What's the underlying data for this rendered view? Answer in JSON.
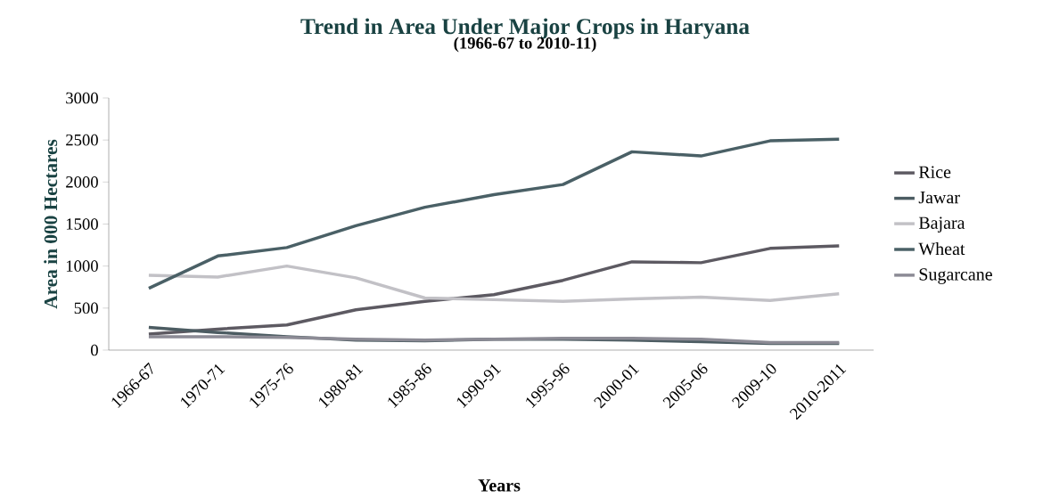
{
  "chart_data": {
    "type": "line",
    "title": "Trend in Area Under Major Crops in Haryana",
    "subtitle": "(1966-67 to 2010-11)",
    "xlabel": "Years",
    "ylabel": "Area in 000 Hectares",
    "categories": [
      "1966-67",
      "1970-71",
      "1975-76",
      "1980-81",
      "1985-86",
      "1990-91",
      "1995-96",
      "2000-01",
      "2005-06",
      "2009-10",
      "2010-2011"
    ],
    "series": [
      {
        "name": "Rice",
        "color": "#5d5a62",
        "values": [
          190,
          250,
          300,
          480,
          580,
          660,
          830,
          1050,
          1040,
          1210,
          1240
        ]
      },
      {
        "name": "Jawar",
        "color": "#4c5c62",
        "values": [
          270,
          210,
          160,
          120,
          110,
          130,
          130,
          120,
          100,
          80,
          80
        ]
      },
      {
        "name": "Bajara",
        "color": "#c2c1c6",
        "values": [
          890,
          870,
          1000,
          860,
          620,
          600,
          580,
          610,
          630,
          590,
          670
        ]
      },
      {
        "name": "Wheat",
        "color": "#4a6066",
        "values": [
          735,
          1120,
          1220,
          1480,
          1700,
          1850,
          1970,
          2360,
          2310,
          2490,
          2510
        ]
      },
      {
        "name": "Sugarcane",
        "color": "#8c8b95",
        "values": [
          160,
          160,
          150,
          130,
          120,
          130,
          140,
          140,
          130,
          90,
          90
        ]
      }
    ],
    "ylim": [
      0,
      3000
    ],
    "yticks": [
      0,
      500,
      1000,
      1500,
      2000,
      2500,
      3000
    ],
    "grid": false,
    "legend": "right",
    "marker": "none",
    "line_style": "solid"
  }
}
